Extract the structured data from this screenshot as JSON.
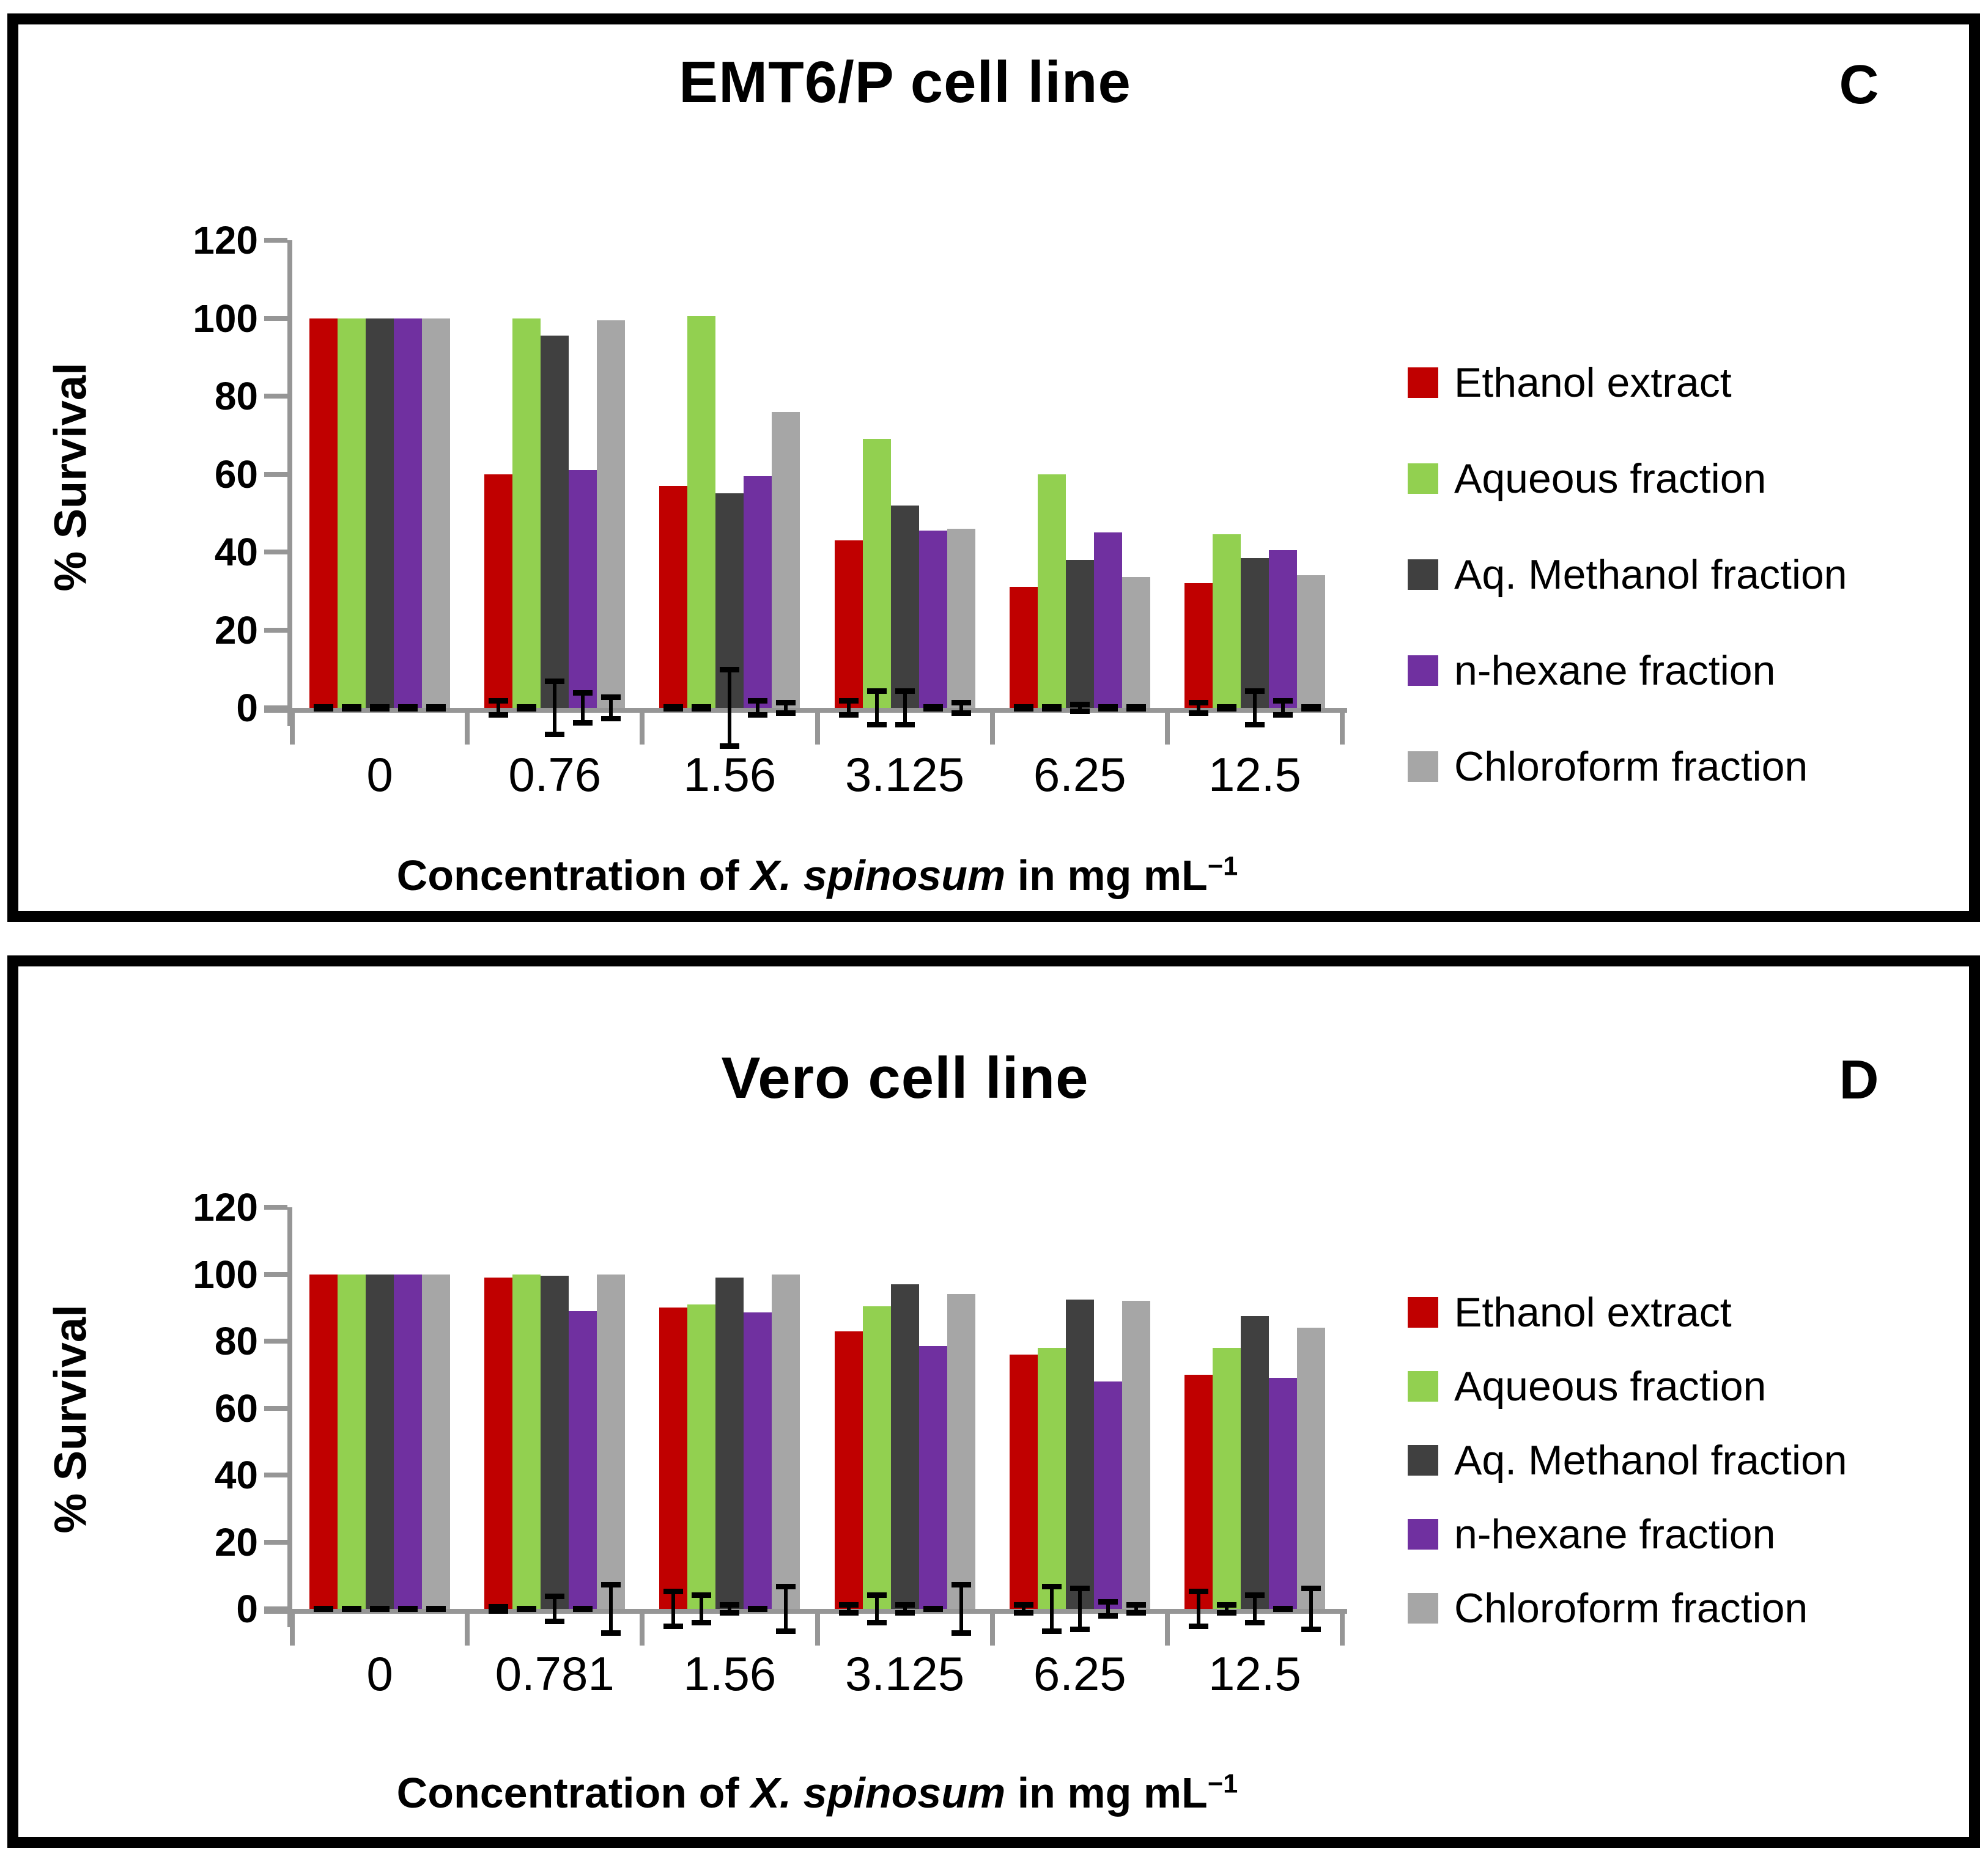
{
  "figure": {
    "panel_letters": [
      "C",
      "D"
    ],
    "accent_colors": {
      "ethanol_red": "#C00000",
      "aqueous_green": "#92D050",
      "methanol_dark_gray": "#404040",
      "hexane_purple": "#7030A0",
      "chloroform_light_gray": "#A6A6A6",
      "axis_gray": "#969696",
      "error_black": "#000000"
    }
  },
  "chart_data": [
    {
      "type": "bar",
      "panel_letter": "C",
      "title": "EMT6/P cell line",
      "ylabel": "% Survival",
      "xlabel_parts": {
        "prefix": "Concentration of ",
        "italic": "X. spinosum",
        "suffix": " in mg mL",
        "sup": "−1"
      },
      "ylim": [
        0,
        120
      ],
      "ytick_step": 20,
      "grid": "off",
      "legend_position": "right",
      "categories": [
        "0",
        "0.76",
        "1.56",
        "3.125",
        "6.25",
        "12.5"
      ],
      "series": [
        {
          "name": "Ethanol extract",
          "color": "#C00000",
          "values": [
            100,
            60,
            57,
            43,
            31,
            32
          ],
          "errors": [
            1,
            2.5,
            1,
            2.5,
            1,
            2
          ]
        },
        {
          "name": "Aqueous fraction",
          "color": "#92D050",
          "values": [
            100,
            100,
            100.5,
            69,
            60,
            44.5
          ],
          "errors": [
            1,
            1,
            1,
            5,
            1,
            1
          ]
        },
        {
          "name": "Aq. Methanol fraction",
          "color": "#404040",
          "values": [
            100,
            95.5,
            55,
            52,
            38,
            38.5
          ],
          "errors": [
            1,
            7.5,
            10.5,
            5,
            1.5,
            5
          ]
        },
        {
          "name": "n-hexane fraction",
          "color": "#7030A0",
          "values": [
            100,
            61,
            59.5,
            45.5,
            45,
            40.5
          ],
          "errors": [
            1,
            4.5,
            2.5,
            1,
            1,
            2.5
          ]
        },
        {
          "name": "Chloroform fraction",
          "color": "#A6A6A6",
          "values": [
            100,
            99.5,
            76,
            46,
            33.5,
            34
          ],
          "errors": [
            1,
            3.5,
            2,
            2,
            1,
            1
          ]
        }
      ]
    },
    {
      "type": "bar",
      "panel_letter": "D",
      "title": "Vero cell line",
      "ylabel": "% Survival",
      "xlabel_parts": {
        "prefix": "Concentration of ",
        "italic": "X. spinosum",
        "suffix": " in mg mL",
        "sup": "−1"
      },
      "ylim": [
        0,
        120
      ],
      "ytick_step": 20,
      "grid": "off",
      "legend_position": "right",
      "categories": [
        "0",
        "0.781",
        "1.56",
        "3.125",
        "6.25",
        "12.5"
      ],
      "series": [
        {
          "name": "Ethanol extract",
          "color": "#C00000",
          "values": [
            100,
            99,
            90,
            83,
            76,
            70
          ],
          "errors": [
            1,
            1.5,
            6,
            2,
            2,
            6
          ]
        },
        {
          "name": "Aqueous fraction",
          "color": "#92D050",
          "values": [
            100,
            100,
            91,
            90.5,
            78,
            78
          ],
          "errors": [
            1,
            1,
            5,
            5,
            7.5,
            2
          ]
        },
        {
          "name": "Aq. Methanol fraction",
          "color": "#404040",
          "values": [
            100,
            99.5,
            99,
            97,
            92.5,
            87.5
          ],
          "errors": [
            1,
            4.5,
            2,
            2,
            7,
            5
          ]
        },
        {
          "name": "n-hexane fraction",
          "color": "#7030A0",
          "values": [
            100,
            89,
            88.5,
            78.5,
            68,
            69
          ],
          "errors": [
            1,
            1,
            1,
            1,
            3,
            1
          ]
        },
        {
          "name": "Chloroform fraction",
          "color": "#A6A6A6",
          "values": [
            100,
            100,
            100,
            94,
            92,
            84
          ],
          "errors": [
            1,
            8,
            7.5,
            8,
            2,
            7
          ]
        }
      ]
    }
  ]
}
